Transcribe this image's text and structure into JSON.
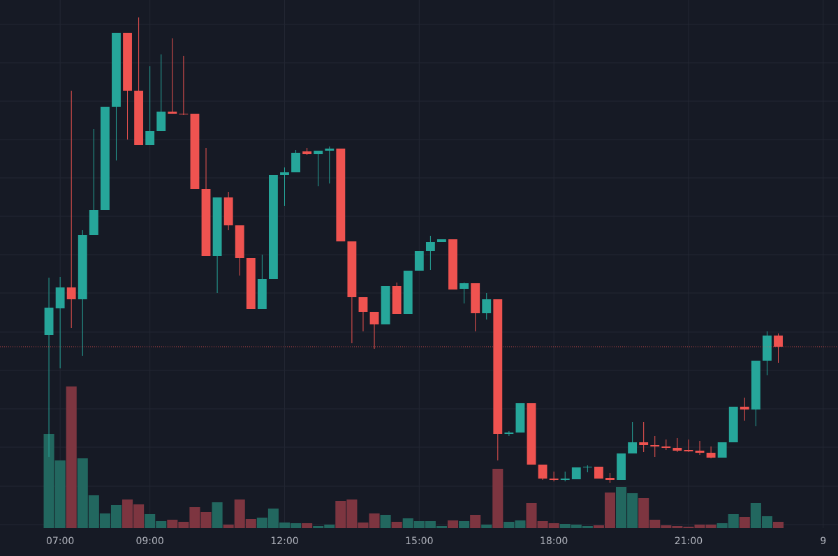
{
  "chart_data": {
    "type": "candlestick",
    "x": [
      6.75,
      7,
      7.25,
      7.5,
      7.75,
      8,
      8.25,
      8.5,
      8.75,
      9,
      9.25,
      9.5,
      9.75,
      10,
      10.25,
      10.5,
      10.75,
      11,
      11.25,
      11.5,
      11.75,
      12,
      12.25,
      12.5,
      12.75,
      13,
      13.25,
      13.5,
      13.75,
      14,
      14.25,
      14.5,
      14.75,
      15,
      15.25,
      15.5,
      15.75,
      16,
      16.25,
      16.5,
      16.75,
      17,
      17.25,
      17.5,
      17.75,
      18,
      18.25,
      18.5,
      18.75,
      19,
      19.25,
      19.5,
      19.75,
      20,
      20.25,
      20.5,
      20.75,
      21,
      21.25,
      21.5,
      21.75,
      22,
      22.25,
      22.5,
      22.75,
      23
    ],
    "open": [
      277,
      315,
      345,
      328,
      420,
      456,
      604,
      710,
      627,
      549,
      569,
      597,
      594,
      594,
      486,
      390,
      474,
      434,
      387,
      314,
      357,
      506,
      510,
      540,
      536,
      541,
      544,
      411,
      331,
      310,
      292,
      347,
      307,
      369,
      397,
      410,
      414,
      343,
      351,
      308,
      328,
      135,
      137,
      179,
      91,
      71,
      69,
      70,
      87,
      88,
      72,
      69,
      107,
      123,
      119,
      117,
      115,
      112,
      111,
      108,
      101,
      123,
      174,
      170,
      240,
      276
    ],
    "high": [
      359,
      360,
      627,
      427,
      572,
      604,
      710,
      710,
      732,
      662,
      679,
      702,
      677,
      594,
      545,
      474,
      482,
      434,
      387,
      392,
      506,
      517,
      542,
      545,
      541,
      547,
      544,
      411,
      331,
      310,
      347,
      352,
      369,
      397,
      419,
      414,
      414,
      352,
      351,
      337,
      328,
      139,
      179,
      179,
      91,
      81,
      81,
      87,
      90,
      88,
      79,
      107,
      152,
      152,
      132,
      127,
      129,
      127,
      125,
      117,
      123,
      174,
      187,
      240,
      282,
      279
    ],
    "low": [
      102,
      229,
      287,
      247,
      420,
      456,
      527,
      557,
      549,
      549,
      569,
      594,
      592,
      486,
      390,
      337,
      427,
      362,
      314,
      314,
      357,
      462,
      510,
      535,
      490,
      494,
      411,
      265,
      282,
      257,
      292,
      307,
      307,
      369,
      370,
      410,
      342,
      322,
      282,
      299,
      97,
      132,
      137,
      91,
      69,
      67,
      67,
      70,
      80,
      71,
      65,
      69,
      107,
      109,
      102,
      112,
      109,
      109,
      105,
      100,
      101,
      123,
      154,
      146,
      219,
      237
    ],
    "close": [
      316,
      345,
      328,
      420,
      456,
      604,
      710,
      627,
      549,
      569,
      597,
      594,
      593,
      486,
      390,
      474,
      434,
      387,
      314,
      357,
      506,
      510,
      538,
      536,
      541,
      544,
      411,
      331,
      310,
      292,
      347,
      307,
      369,
      397,
      410,
      414,
      342,
      351,
      308,
      328,
      135,
      137,
      179,
      91,
      71,
      69,
      71,
      87,
      88,
      71,
      69,
      107,
      123,
      119,
      117,
      115,
      111,
      110,
      108,
      101,
      123,
      174,
      170,
      240,
      276,
      260
    ],
    "volume": [
      135,
      97,
      203,
      100,
      47,
      21,
      33,
      41,
      34,
      20,
      10,
      12,
      9,
      30,
      23,
      37,
      5,
      41,
      13,
      15,
      28,
      8,
      7,
      7,
      3,
      5,
      39,
      41,
      8,
      21,
      19,
      9,
      14,
      10,
      10,
      3,
      11,
      10,
      19,
      5,
      85,
      9,
      11,
      36,
      10,
      7,
      6,
      5,
      3,
      4,
      51,
      59,
      50,
      43,
      12,
      4,
      3,
      2,
      5,
      5,
      7,
      20,
      16,
      36,
      17,
      9
    ],
    "xlim": [
      5.66,
      24.33
    ],
    "xticks": [
      {
        "value": 7,
        "label": "07:00"
      },
      {
        "value": 9,
        "label": "09:00"
      },
      {
        "value": 12,
        "label": "12:00"
      },
      {
        "value": 15,
        "label": "15:00"
      },
      {
        "value": 18,
        "label": "18:00"
      },
      {
        "value": 21,
        "label": "21:00"
      },
      {
        "value": 24,
        "label": "9"
      }
    ],
    "ylim": [
      0,
      757
    ],
    "yticks": [
      5,
      60,
      116,
      171,
      226,
      281,
      337,
      392,
      447,
      502,
      557,
      612,
      667,
      722
    ],
    "y2lim": [
      0,
      757
    ],
    "grid": true,
    "up_color": "#26a69a",
    "down_color": "#ef5350",
    "volume_up_color": "#22675f",
    "volume_down_color": "#7d3540"
  }
}
